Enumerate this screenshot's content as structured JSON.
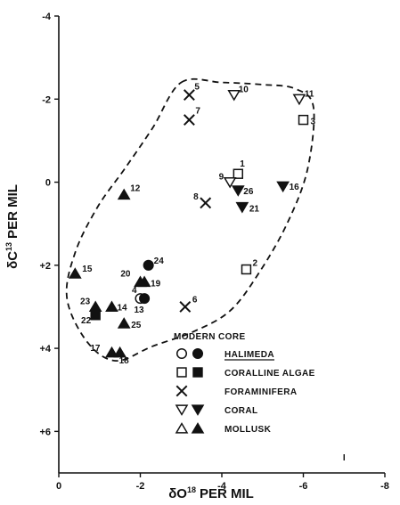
{
  "chart_data": {
    "type": "scatter",
    "x_axis": {
      "label_main": "δO",
      "label_sup": "18",
      "label_rest": "PER MIL",
      "range": [
        0,
        -8
      ],
      "ticks": [
        0,
        -2,
        -4,
        -6,
        -8
      ],
      "tick_labels": [
        "0",
        "-2",
        "-4",
        "-6",
        "-8"
      ]
    },
    "y_axis": {
      "label_main": "δC",
      "label_sup": "13",
      "label_rest": "PER MIL",
      "range": [
        -4,
        7
      ],
      "ticks": [
        -4,
        -2,
        0,
        2,
        4,
        6
      ],
      "tick_labels": [
        "-4",
        "-2",
        "0",
        "+2",
        "+4",
        "+6"
      ]
    },
    "points": [
      {
        "id": "1",
        "x": -4.4,
        "y": -0.2,
        "group": "coralline_algae",
        "core": false
      },
      {
        "id": "2",
        "x": -4.6,
        "y": 2.1,
        "group": "coralline_algae",
        "core": false
      },
      {
        "id": "3",
        "x": -6.0,
        "y": -1.5,
        "group": "coralline_algae",
        "core": false
      },
      {
        "id": "4",
        "x": -2.0,
        "y": 2.8,
        "group": "halimeda",
        "core": false
      },
      {
        "id": "5",
        "x": -3.2,
        "y": -2.1,
        "group": "foraminifera",
        "core": false
      },
      {
        "id": "6",
        "x": -3.1,
        "y": 3.0,
        "group": "foraminifera",
        "core": false
      },
      {
        "id": "7",
        "x": -3.2,
        "y": -1.5,
        "group": "foraminifera",
        "core": false
      },
      {
        "id": "8",
        "x": -3.6,
        "y": 0.5,
        "group": "foraminifera",
        "core": false
      },
      {
        "id": "9",
        "x": -4.2,
        "y": 0.0,
        "group": "coral",
        "core": false
      },
      {
        "id": "10",
        "x": -4.3,
        "y": -2.1,
        "group": "coral",
        "core": false
      },
      {
        "id": "11",
        "x": -5.9,
        "y": -2.0,
        "group": "coral",
        "core": false
      },
      {
        "id": "12",
        "x": -1.6,
        "y": 0.3,
        "group": "mollusk",
        "core": true
      },
      {
        "id": "13",
        "x": -2.1,
        "y": 2.8,
        "group": "halimeda",
        "core": true
      },
      {
        "id": "14",
        "x": -1.3,
        "y": 3.0,
        "group": "mollusk",
        "core": true
      },
      {
        "id": "15",
        "x": -0.4,
        "y": 2.2,
        "group": "mollusk",
        "core": true
      },
      {
        "id": "16",
        "x": -5.5,
        "y": 0.1,
        "group": "coral",
        "core": true
      },
      {
        "id": "17",
        "x": -1.3,
        "y": 4.1,
        "group": "mollusk",
        "core": true
      },
      {
        "id": "18",
        "x": -1.5,
        "y": 4.1,
        "group": "mollusk",
        "core": true
      },
      {
        "id": "19",
        "x": -2.1,
        "y": 2.4,
        "group": "mollusk",
        "core": true
      },
      {
        "id": "20",
        "x": -2.0,
        "y": 2.4,
        "group": "mollusk",
        "core": true
      },
      {
        "id": "21",
        "x": -4.5,
        "y": 0.6,
        "group": "coral",
        "core": true
      },
      {
        "id": "22",
        "x": -0.9,
        "y": 3.2,
        "group": "coralline_algae",
        "core": true
      },
      {
        "id": "23",
        "x": -0.9,
        "y": 3.0,
        "group": "mollusk",
        "core": true
      },
      {
        "id": "24",
        "x": -2.2,
        "y": 2.0,
        "group": "halimeda",
        "core": true
      },
      {
        "id": "25",
        "x": -1.6,
        "y": 3.4,
        "group": "mollusk",
        "core": true
      },
      {
        "id": "26",
        "x": -4.4,
        "y": 0.2,
        "group": "coral",
        "core": true
      }
    ],
    "stray_mark": {
      "text": "I",
      "x": -7.0,
      "y": 6.7
    },
    "legend": {
      "header": "MODERN CORE",
      "placement": "bottom-right",
      "entries": [
        {
          "group": "halimeda",
          "label": "HALIMEDA",
          "underlined": true
        },
        {
          "group": "coralline_algae",
          "label": "CORALLINE ALGAE",
          "underlined": false
        },
        {
          "group": "foraminifera",
          "label": "FORAMINIFERA",
          "underlined": false
        },
        {
          "group": "coral",
          "label": "CORAL",
          "underlined": false
        },
        {
          "group": "mollusk",
          "label": "MOLLUSK",
          "underlined": false
        }
      ]
    },
    "envelope": {
      "style": "dashed",
      "path": [
        [
          -3.0,
          -2.4
        ],
        [
          -4.0,
          -2.4
        ],
        [
          -5.0,
          -2.35
        ],
        [
          -5.8,
          -2.25
        ],
        [
          -6.25,
          -1.8
        ],
        [
          -6.1,
          -0.3
        ],
        [
          -5.6,
          1.0
        ],
        [
          -4.9,
          2.2
        ],
        [
          -4.2,
          3.1
        ],
        [
          -3.3,
          3.6
        ],
        [
          -2.3,
          3.95
        ],
        [
          -1.4,
          4.3
        ],
        [
          -0.7,
          3.85
        ],
        [
          -0.2,
          2.8
        ],
        [
          -0.4,
          1.7
        ],
        [
          -0.95,
          0.6
        ],
        [
          -1.6,
          -0.3
        ],
        [
          -2.3,
          -1.3
        ],
        [
          -3.0,
          -2.4
        ]
      ]
    },
    "grid": false
  }
}
